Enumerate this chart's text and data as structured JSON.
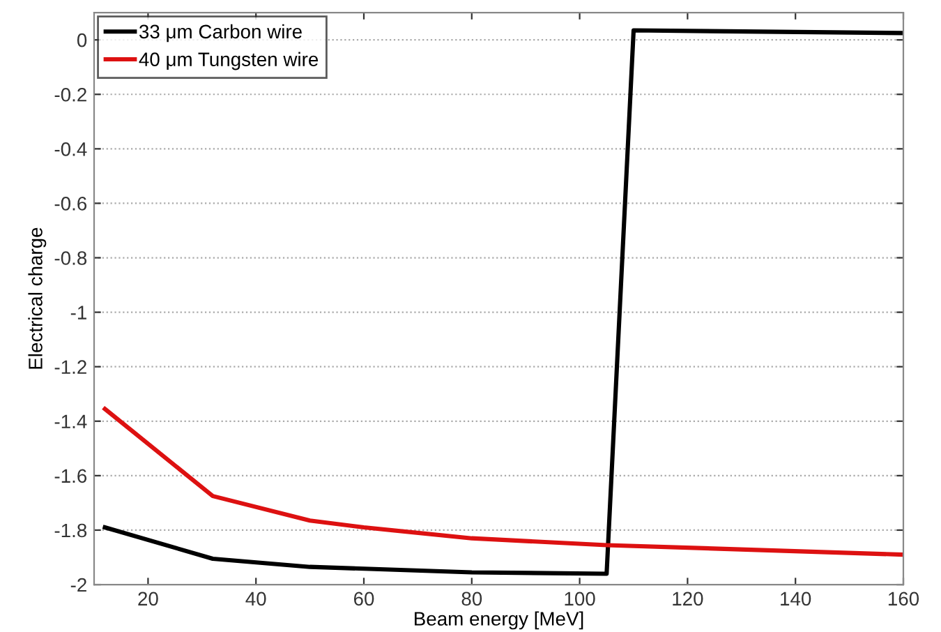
{
  "chart_data": {
    "type": "line",
    "xlabel": "Beam energy [MeV]",
    "ylabel": "Electrical charge",
    "xlim": [
      10,
      160
    ],
    "xticks": [
      20,
      40,
      60,
      80,
      100,
      120,
      140,
      160
    ],
    "ylim": [
      -2,
      0.1
    ],
    "yticks": [
      {
        "value": -2,
        "label": "-2"
      },
      {
        "value": -1.8,
        "label": "-1.8"
      },
      {
        "value": -1.6,
        "label": "-1.6"
      },
      {
        "value": -1.4,
        "label": "-1.4"
      },
      {
        "value": -1.2,
        "label": "-1.2"
      },
      {
        "value": -1,
        "label": "-1"
      },
      {
        "value": -0.8,
        "label": "-0.8"
      },
      {
        "value": -0.6,
        "label": "-0.6"
      },
      {
        "value": -0.4,
        "label": "-0.4"
      },
      {
        "value": -0.2,
        "label": "-0.2"
      },
      0
    ],
    "grid": "y",
    "legend": "top left",
    "line_style": "solid",
    "series": [
      {
        "name": "33 μm Carbon wire",
        "color": "#000000",
        "x": [
          12,
          32,
          50,
          80,
          105,
          110,
          160
        ],
        "values": [
          -1.79,
          -1.905,
          -1.935,
          -1.955,
          -1.96,
          0.035,
          0.025
        ]
      },
      {
        "name": "40 μm Tungsten wire",
        "color": "#dd1111",
        "x": [
          12,
          32,
          50,
          60,
          80,
          105,
          160
        ],
        "values": [
          -1.355,
          -1.675,
          -1.765,
          -1.79,
          -1.83,
          -1.855,
          -1.89
        ]
      }
    ]
  }
}
